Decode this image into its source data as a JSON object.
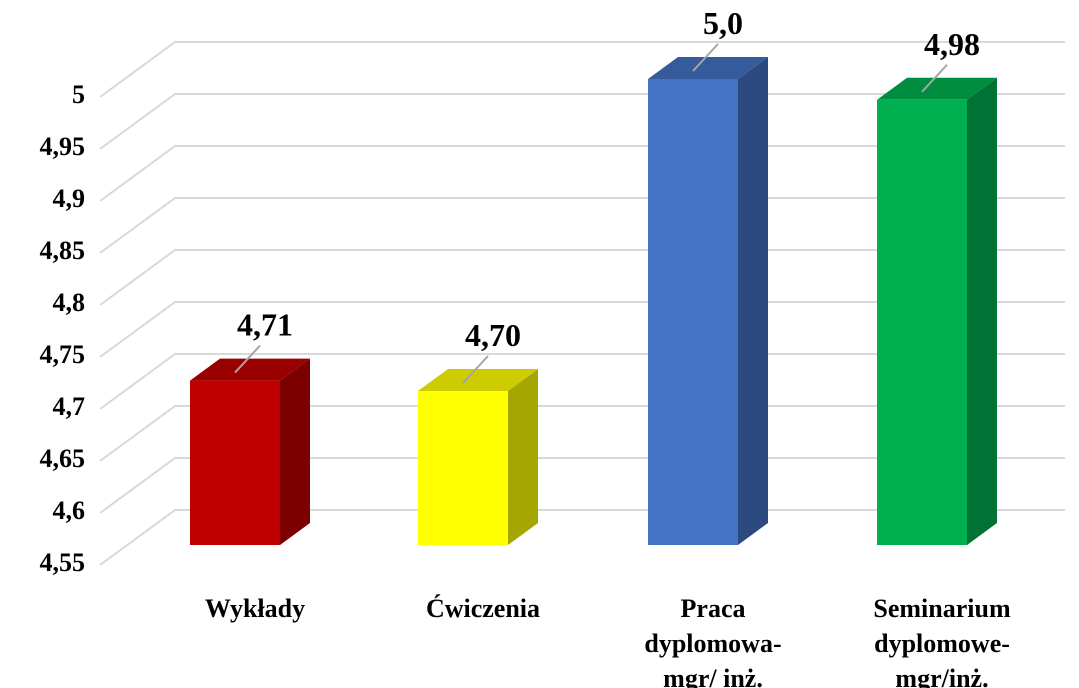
{
  "chart_data": {
    "type": "bar3d",
    "categories": [
      [
        "Wykłady"
      ],
      [
        "Ćwiczenia"
      ],
      [
        "Praca",
        "dyplomowa-",
        "mgr/ inż."
      ],
      [
        "Seminarium",
        "dyplomowe-",
        "mgr/inż."
      ]
    ],
    "values": [
      4.71,
      4.7,
      5.0,
      4.98
    ],
    "value_labels": [
      "4,71",
      "4,70",
      "5,0",
      "4,98"
    ],
    "colors": [
      "#c00000",
      "#ffff00",
      "#4472c4",
      "#00b050"
    ],
    "ylim": [
      4.55,
      5
    ],
    "yticks": [
      {
        "value": 4.55,
        "label": "4,55"
      },
      {
        "value": 4.6,
        "label": "4,6"
      },
      {
        "value": 4.65,
        "label": "4,65"
      },
      {
        "value": 4.7,
        "label": "4,7"
      },
      {
        "value": 4.75,
        "label": "4,75"
      },
      {
        "value": 4.8,
        "label": "4,8"
      },
      {
        "value": 4.85,
        "label": "4,85"
      },
      {
        "value": 4.9,
        "label": "4,9"
      },
      {
        "value": 4.95,
        "label": "4,95"
      },
      5
    ],
    "grid": true
  }
}
